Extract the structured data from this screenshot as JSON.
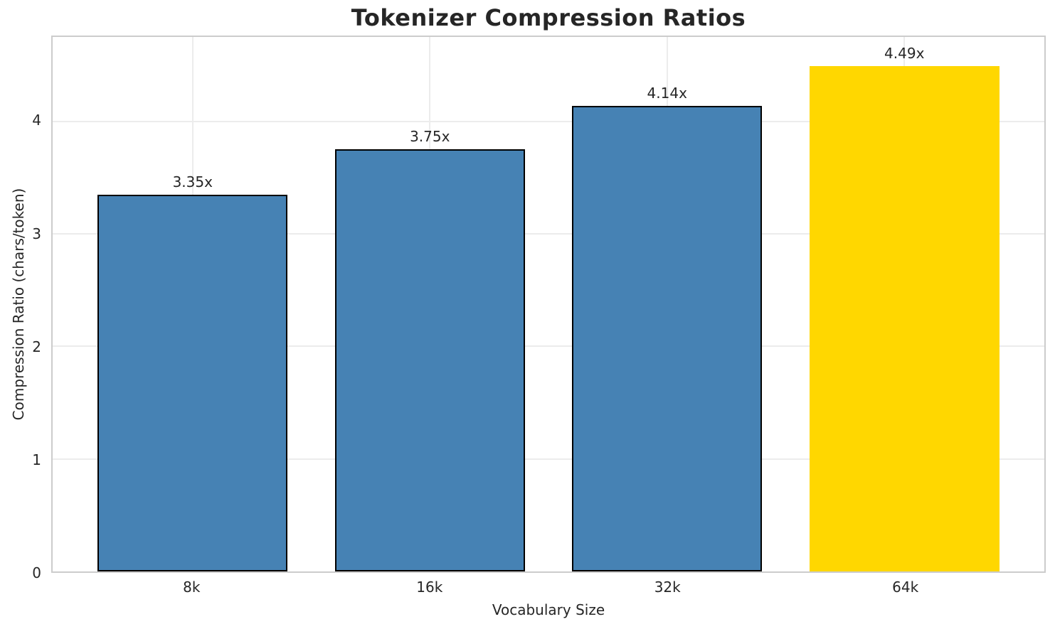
{
  "chart_data": {
    "type": "bar",
    "title": "Tokenizer Compression Ratios",
    "xlabel": "Vocabulary Size",
    "ylabel": "Compression Ratio (chars/token)",
    "categories": [
      "8k",
      "16k",
      "32k",
      "64k"
    ],
    "values": [
      3.35,
      3.75,
      4.14,
      4.49
    ],
    "bar_labels": [
      "3.35x",
      "3.75x",
      "4.14x",
      "4.49x"
    ],
    "bar_colors": [
      "#4682B4",
      "#4682B4",
      "#4682B4",
      "#FFD700"
    ],
    "bar_edge_colors": [
      "#000000",
      "#000000",
      "#000000",
      "none"
    ],
    "ylim": [
      0,
      4.75
    ],
    "yticks": [
      0,
      1,
      2,
      3,
      4
    ],
    "grid": "both",
    "legend_position": "none",
    "colors": {
      "bar_default": "#4682B4",
      "bar_highlight": "#FFD700",
      "bar_edge": "#000000",
      "grid": "#ECECEC",
      "spine": "#CCCCCC",
      "text": "#262626",
      "background": "#FFFFFF"
    }
  }
}
